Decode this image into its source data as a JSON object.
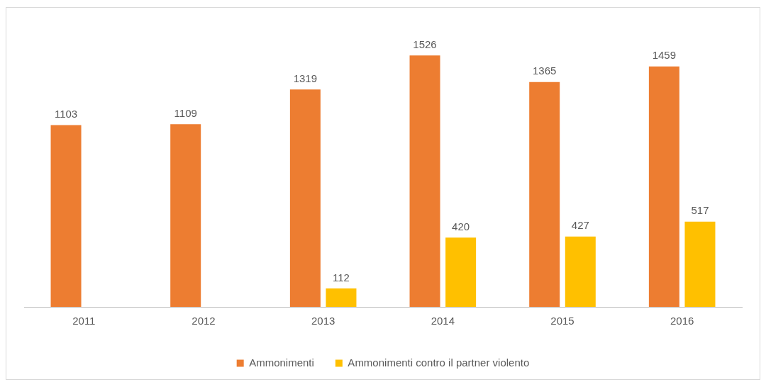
{
  "chart_data": {
    "type": "bar",
    "categories": [
      "2011",
      "2012",
      "2013",
      "2014",
      "2015",
      "2016"
    ],
    "series": [
      {
        "name": "Ammonimenti",
        "color": "#ed7d31",
        "values": [
          1103,
          1109,
          1319,
          1526,
          1365,
          1459
        ]
      },
      {
        "name": "Ammonimenti contro il partner violento",
        "color": "#ffc000",
        "values": [
          null,
          null,
          112,
          420,
          427,
          517
        ]
      }
    ],
    "data_labels": true,
    "legend": "bottom",
    "grid": false
  }
}
